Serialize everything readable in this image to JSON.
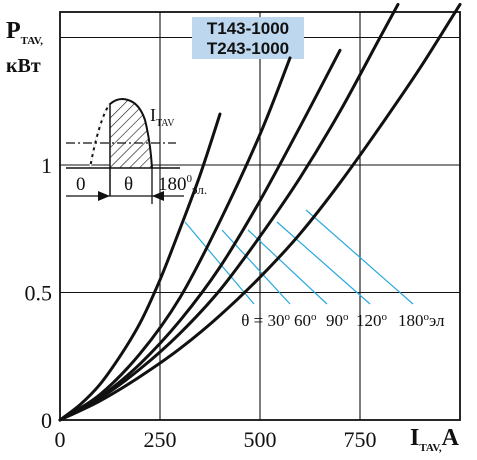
{
  "chart_data": {
    "type": "line",
    "title_lines": [
      "T143-1000",
      "T243-1000"
    ],
    "ylabel_main": "P",
    "ylabel_sub": "TAV,",
    "ylabel_unit": "кВт",
    "xlabel_main": "I",
    "xlabel_sub": "TAV,",
    "xlabel_unit": "A",
    "xlim": [
      0,
      1000
    ],
    "ylim": [
      0,
      1.6
    ],
    "x_ticks": [
      "0",
      "250",
      "500",
      "750"
    ],
    "y_ticks": [
      "0",
      "0.5",
      "1"
    ],
    "grid": true,
    "series": [
      {
        "name": "30",
        "x": [
          0,
          50,
          100,
          150,
          200,
          250,
          300,
          350,
          400
        ],
        "y": [
          0,
          0.06,
          0.14,
          0.25,
          0.38,
          0.55,
          0.75,
          0.96,
          1.2
        ]
      },
      {
        "name": "60",
        "x": [
          0,
          100,
          200,
          300,
          400,
          500,
          575
        ],
        "y": [
          0,
          0.1,
          0.26,
          0.48,
          0.78,
          1.12,
          1.42
        ]
      },
      {
        "name": "90",
        "x": [
          0,
          100,
          200,
          300,
          400,
          500,
          600,
          700
        ],
        "y": [
          0,
          0.09,
          0.22,
          0.39,
          0.6,
          0.86,
          1.15,
          1.45
        ]
      },
      {
        "name": "120",
        "x": [
          0,
          100,
          200,
          300,
          400,
          500,
          600,
          700,
          800,
          845
        ],
        "y": [
          0,
          0.085,
          0.2,
          0.34,
          0.51,
          0.72,
          0.95,
          1.21,
          1.5,
          1.63
        ]
      },
      {
        "name": "180",
        "x": [
          0,
          100,
          200,
          300,
          400,
          500,
          600,
          700,
          800,
          900,
          1000
        ],
        "y": [
          0,
          0.075,
          0.17,
          0.28,
          0.41,
          0.56,
          0.73,
          0.93,
          1.15,
          1.38,
          1.63
        ]
      }
    ],
    "series_label_prefix": "θ = ",
    "series_label_deg": "о",
    "series_label_suffix": "эл",
    "inset": {
      "current_label_main": "I",
      "current_label_sub": "TAV",
      "zero_label": "0",
      "theta_label": "θ",
      "end_label_main": "180",
      "end_label_sup": "0",
      "end_label_sub": "эл."
    }
  }
}
